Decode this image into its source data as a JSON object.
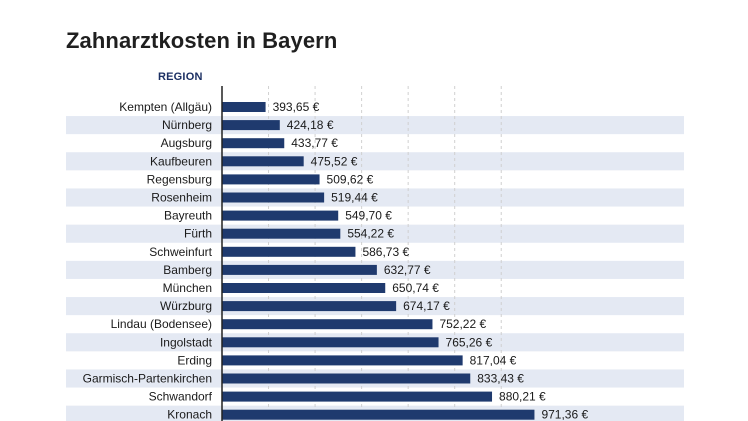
{
  "header": {
    "title": "Zahnarztkosten in Bayern",
    "column_label": "REGION"
  },
  "colors": {
    "bar": "#1f3a6e",
    "band": "#e4e9f3",
    "axis": "#222222",
    "grid": "#d0d0d0"
  },
  "chart_data": {
    "type": "bar",
    "orientation": "horizontal",
    "title": "Zahnarztkosten in Bayern",
    "category_header": "REGION",
    "categories": [
      "Kempten (Allgäu)",
      "Nürnberg",
      "Augsburg",
      "Kaufbeuren",
      "Regensburg",
      "Rosenheim",
      "Bayreuth",
      "Fürth",
      "Schweinfurt",
      "Bamberg",
      "München",
      "Würzburg",
      "Lindau (Bodensee)",
      "Ingolstadt",
      "Erding",
      "Garmisch-Partenkirchen",
      "Schwandorf",
      "Kronach"
    ],
    "values": [
      393.65,
      424.18,
      433.77,
      475.52,
      509.62,
      519.44,
      549.7,
      554.22,
      586.73,
      632.77,
      650.74,
      674.17,
      752.22,
      765.26,
      817.04,
      833.43,
      880.21,
      971.36
    ],
    "value_labels": [
      "393,65 €",
      "424,18 €",
      "433,77 €",
      "475,52 €",
      "509,62 €",
      "519,44 €",
      "549,70 €",
      "554,22 €",
      "586,73 €",
      "632,77 €",
      "650,74 €",
      "674,17 €",
      "752,22 €",
      "765,26 €",
      "817,04 €",
      "833,43 €",
      "880,21 €",
      "971,36 €"
    ],
    "xlim": [
      300,
      1000
    ],
    "grid": true,
    "gridline_values": [
      400,
      500,
      600,
      700,
      800,
      900
    ],
    "legend": "none"
  }
}
